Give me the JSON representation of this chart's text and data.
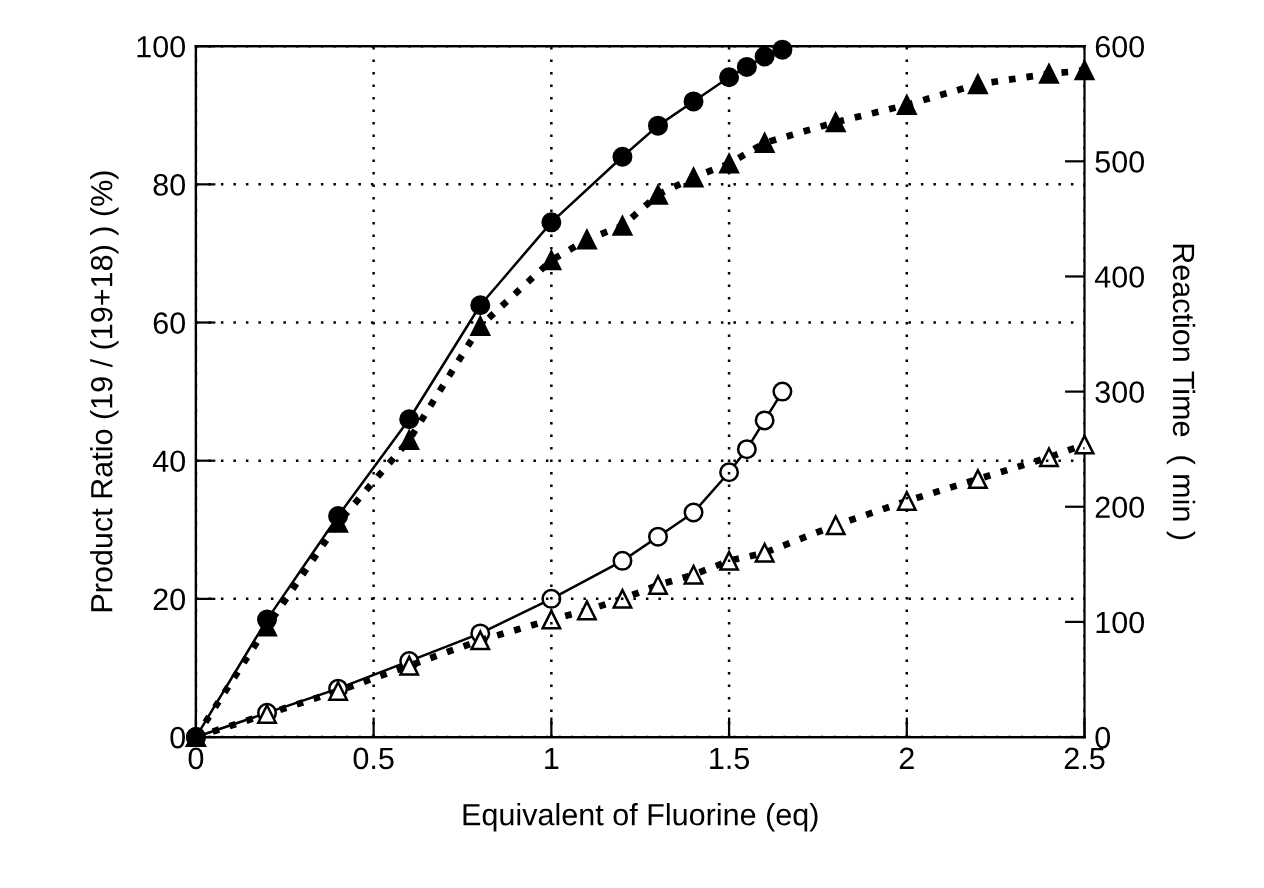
{
  "chart_data": {
    "type": "line",
    "xlabel": "Equivalent of Fluorine (eq)",
    "ylabel": "Product Ratio (19 / (19+18) ) (%)",
    "y2label": "Reaction Time  ( min )",
    "xlim": [
      0,
      2.5
    ],
    "xticks": [
      0,
      0.5,
      1,
      1.5,
      2,
      2.5
    ],
    "ylim": [
      0,
      100
    ],
    "yticks": [
      0,
      20,
      40,
      60,
      80,
      100
    ],
    "y2lim": [
      0,
      600
    ],
    "y2ticks": [
      0,
      100,
      200,
      300,
      400,
      500,
      600
    ],
    "grid": true,
    "legend": false,
    "series": [
      {
        "color": "#000000",
        "marker": "circle",
        "line_style": "solid",
        "x": [
          0,
          0.2,
          0.4,
          0.6,
          0.8,
          1.0,
          1.2,
          1.3,
          1.4,
          1.5,
          1.55,
          1.6,
          1.65
        ],
        "values": [
          0,
          17,
          32,
          46,
          62.5,
          74.5,
          84,
          88.5,
          92,
          95.5,
          97,
          98.5,
          99.5
        ]
      },
      {
        "color": "#000000",
        "marker": "triangle",
        "line_style": "dotted",
        "x": [
          0,
          0.2,
          0.4,
          0.6,
          0.8,
          1.0,
          1.1,
          1.2,
          1.3,
          1.4,
          1.5,
          1.6,
          1.8,
          2.0,
          2.2,
          2.4,
          2.5
        ],
        "values": [
          0,
          16,
          31,
          43,
          59.5,
          69,
          72,
          74,
          78.5,
          81,
          83,
          86,
          89,
          91.5,
          94.5,
          96,
          96.5
        ]
      },
      {
        "color": "#ffffff",
        "marker": "circle",
        "line_style": "solid",
        "axis": "y2",
        "x": [
          0,
          0.2,
          0.4,
          0.6,
          0.8,
          1.0,
          1.2,
          1.3,
          1.4,
          1.5,
          1.55,
          1.6,
          1.65
        ],
        "values": [
          0,
          21,
          42,
          66,
          90,
          120,
          153,
          174,
          195,
          230,
          250,
          275,
          300
        ]
      },
      {
        "color": "#ffffff",
        "marker": "triangle",
        "line_style": "dotted",
        "axis": "y2",
        "x": [
          0,
          0.2,
          0.4,
          0.6,
          0.8,
          1.0,
          1.1,
          1.2,
          1.3,
          1.4,
          1.5,
          1.6,
          1.8,
          2.0,
          2.2,
          2.4,
          2.5
        ],
        "values": [
          0,
          20,
          40,
          62,
          84,
          102,
          110,
          120,
          132,
          141,
          153,
          160,
          184,
          205,
          224,
          243,
          254
        ]
      }
    ]
  }
}
